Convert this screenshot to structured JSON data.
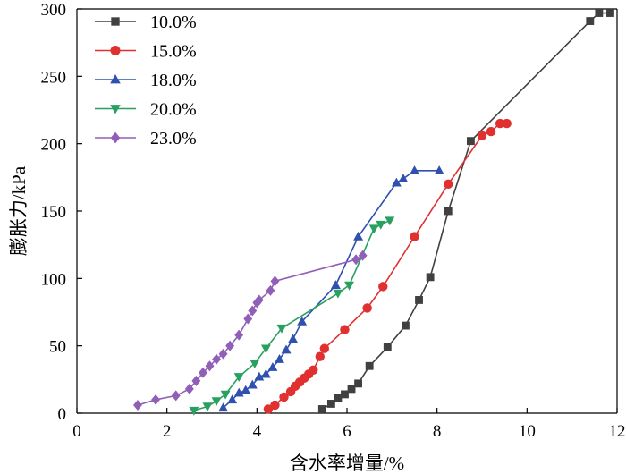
{
  "chart_data": {
    "type": "line",
    "title": "",
    "xlabel": "含水率增量/%",
    "ylabel": "膨胀力/kPa",
    "xlim": [
      0,
      12
    ],
    "ylim": [
      0,
      300
    ],
    "x_ticks": [
      0,
      2,
      4,
      6,
      8,
      10,
      12
    ],
    "y_ticks": [
      0,
      50,
      100,
      150,
      200,
      250,
      300
    ],
    "grid": false,
    "legend_position": "top-left",
    "series": [
      {
        "name": "10.0%",
        "color": "#404040",
        "marker": "square",
        "points": [
          [
            5.45,
            3
          ],
          [
            5.65,
            7
          ],
          [
            5.8,
            11
          ],
          [
            5.95,
            14
          ],
          [
            6.1,
            18
          ],
          [
            6.25,
            22
          ],
          [
            6.5,
            35
          ],
          [
            6.9,
            49
          ],
          [
            7.3,
            65
          ],
          [
            7.6,
            84
          ],
          [
            7.85,
            101
          ],
          [
            8.25,
            150
          ],
          [
            8.75,
            202
          ],
          [
            11.4,
            291
          ],
          [
            11.6,
            297
          ],
          [
            11.85,
            297
          ]
        ]
      },
      {
        "name": "15.0%",
        "color": "#e03030",
        "marker": "circle",
        "points": [
          [
            4.25,
            3
          ],
          [
            4.4,
            6
          ],
          [
            4.6,
            12
          ],
          [
            4.75,
            16
          ],
          [
            4.85,
            20
          ],
          [
            4.95,
            23
          ],
          [
            5.05,
            26
          ],
          [
            5.15,
            29
          ],
          [
            5.25,
            32
          ],
          [
            5.4,
            42
          ],
          [
            5.5,
            48
          ],
          [
            5.95,
            62
          ],
          [
            6.45,
            78
          ],
          [
            6.8,
            94
          ],
          [
            7.5,
            131
          ],
          [
            8.25,
            170
          ],
          [
            9.0,
            206
          ],
          [
            9.2,
            209
          ],
          [
            9.4,
            215
          ],
          [
            9.55,
            215
          ]
        ]
      },
      {
        "name": "18.0%",
        "color": "#3050b0",
        "marker": "triangle",
        "points": [
          [
            3.25,
            4
          ],
          [
            3.45,
            10
          ],
          [
            3.6,
            15
          ],
          [
            3.75,
            17
          ],
          [
            3.9,
            21
          ],
          [
            4.05,
            27
          ],
          [
            4.2,
            29
          ],
          [
            4.35,
            34
          ],
          [
            4.5,
            40
          ],
          [
            4.65,
            47
          ],
          [
            4.8,
            55
          ],
          [
            5.0,
            68
          ],
          [
            5.75,
            95
          ],
          [
            6.25,
            131
          ],
          [
            7.1,
            171
          ],
          [
            7.25,
            174
          ],
          [
            7.5,
            180
          ],
          [
            8.05,
            180
          ]
        ]
      },
      {
        "name": "20.0%",
        "color": "#28a060",
        "marker": "triangle-down",
        "points": [
          [
            2.6,
            2
          ],
          [
            2.9,
            5
          ],
          [
            3.1,
            9
          ],
          [
            3.3,
            14
          ],
          [
            3.6,
            27
          ],
          [
            3.95,
            37
          ],
          [
            4.2,
            48
          ],
          [
            4.55,
            63
          ],
          [
            5.8,
            89
          ],
          [
            6.05,
            95
          ],
          [
            6.6,
            137
          ],
          [
            6.75,
            140
          ],
          [
            6.95,
            143
          ]
        ]
      },
      {
        "name": "23.0%",
        "color": "#9060b8",
        "marker": "diamond",
        "points": [
          [
            1.35,
            6
          ],
          [
            1.75,
            10
          ],
          [
            2.2,
            13
          ],
          [
            2.5,
            18
          ],
          [
            2.65,
            24
          ],
          [
            2.8,
            30
          ],
          [
            2.95,
            35
          ],
          [
            3.1,
            40
          ],
          [
            3.25,
            44
          ],
          [
            3.4,
            50
          ],
          [
            3.6,
            58
          ],
          [
            3.8,
            70
          ],
          [
            3.9,
            76
          ],
          [
            4.0,
            82
          ],
          [
            4.05,
            84
          ],
          [
            4.3,
            91
          ],
          [
            4.4,
            98
          ],
          [
            6.2,
            114
          ],
          [
            6.35,
            117
          ]
        ]
      }
    ]
  }
}
